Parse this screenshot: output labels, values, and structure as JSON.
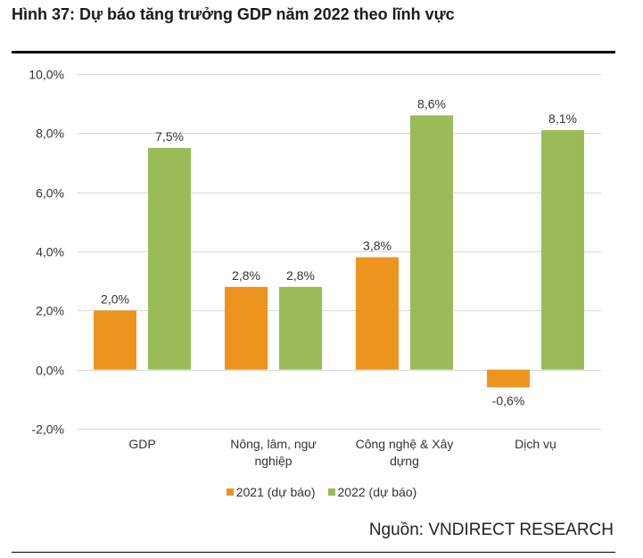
{
  "header": {
    "title": "Hình 37: Dự báo tăng trưởng GDP năm 2022 theo lĩnh vực"
  },
  "footer": {
    "source": "Nguồn: VNDIRECT RESEARCH"
  },
  "colors": {
    "series_2021": "#ED9420",
    "series_2022": "#9BBB59",
    "grid": "#D9D9D9"
  },
  "chart_data": {
    "type": "bar",
    "title": "Hình 37: Dự báo tăng trưởng GDP năm 2022 theo lĩnh vực",
    "xlabel": "",
    "ylabel": "",
    "ylim": [
      -2.0,
      10.0
    ],
    "grid": true,
    "legend_position": "bottom",
    "y_ticks": [
      -2.0,
      0.0,
      2.0,
      4.0,
      6.0,
      8.0,
      10.0
    ],
    "y_tick_labels": [
      "-2,0%",
      "0,0%",
      "2,0%",
      "4,0%",
      "6,0%",
      "8,0%",
      "10,0%"
    ],
    "categories": [
      [
        "GDP"
      ],
      [
        "Nông, lâm, ngư",
        "nghiệp"
      ],
      [
        "Công nghệ & Xây",
        "dựng"
      ],
      [
        "Dịch vụ"
      ]
    ],
    "series": [
      {
        "name": "2021 (dự báo)",
        "values": [
          2.0,
          2.8,
          3.8,
          -0.6
        ],
        "labels": [
          "2,0%",
          "2,8%",
          "3,8%",
          "-0,6%"
        ]
      },
      {
        "name": "2022 (dự báo)",
        "values": [
          7.5,
          2.8,
          8.6,
          8.1
        ],
        "labels": [
          "7,5%",
          "2,8%",
          "8,6%",
          "8,1%"
        ]
      }
    ]
  }
}
